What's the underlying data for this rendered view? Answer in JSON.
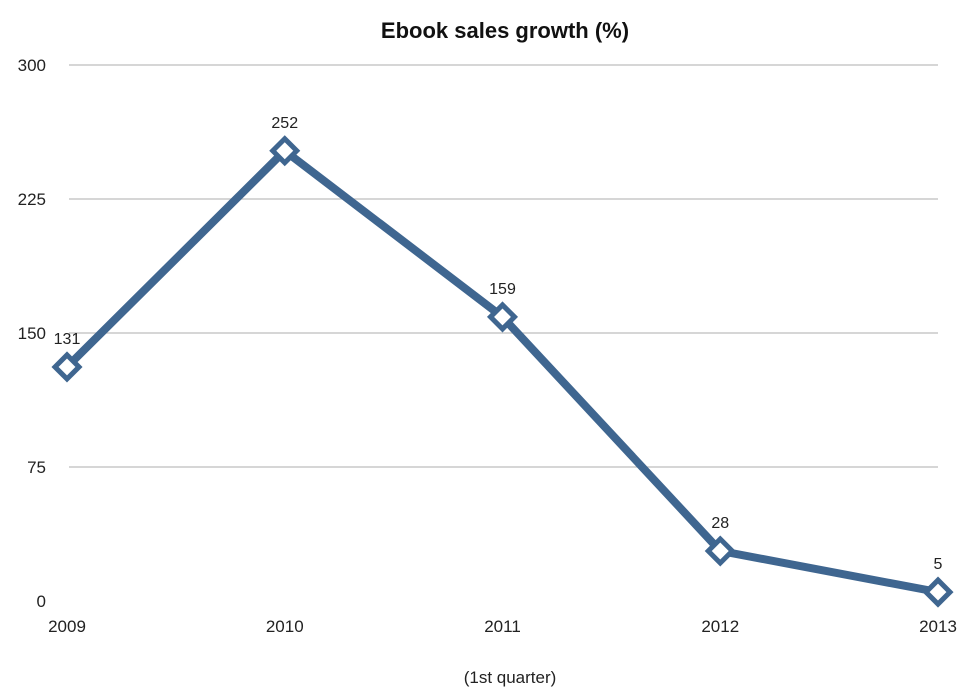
{
  "chart_data": {
    "type": "line",
    "title": "Ebook sales growth (%)",
    "xlabel": "(1st quarter)",
    "ylabel": "",
    "categories": [
      "2009",
      "2010",
      "2011",
      "2012",
      "2013"
    ],
    "series": [
      {
        "values": [
          131,
          252,
          159,
          28,
          5
        ],
        "color": "#3f6690"
      }
    ],
    "ylim": [
      0,
      300
    ],
    "yticks": [
      0,
      75,
      150,
      225,
      300
    ],
    "grid": true,
    "legend": "none",
    "data_labels": [
      "131",
      "252",
      "159",
      "28",
      "5"
    ]
  }
}
